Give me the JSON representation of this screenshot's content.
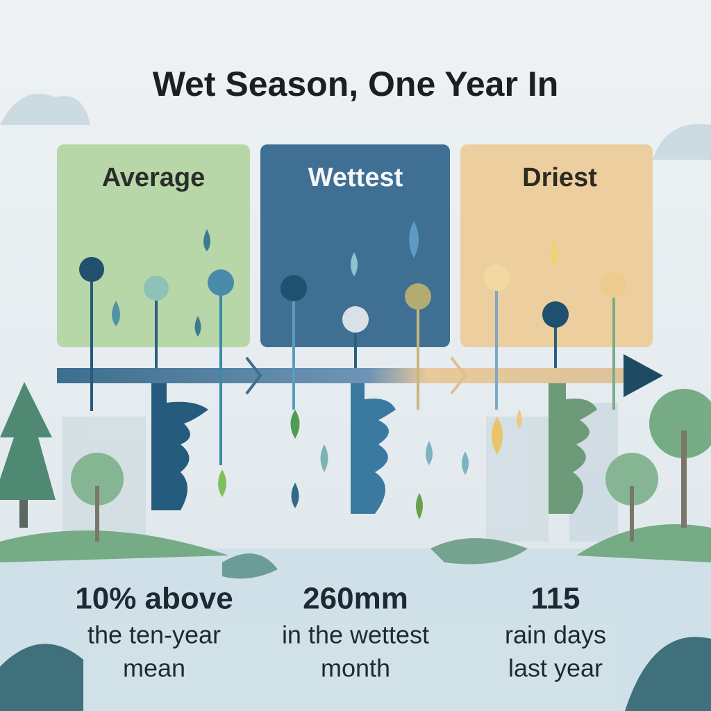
{
  "header": {
    "title": "Wet Season, One Year In"
  },
  "panels": [
    {
      "label": "Average"
    },
    {
      "label": "Wettest"
    },
    {
      "label": "Driest"
    }
  ],
  "stats": [
    {
      "lines": [
        "10% above",
        "the ten-year",
        "mean"
      ]
    },
    {
      "lines": [
        "260mm",
        "in the wettest",
        "month"
      ]
    },
    {
      "lines": [
        "115",
        "rain days",
        "last year"
      ]
    }
  ]
}
